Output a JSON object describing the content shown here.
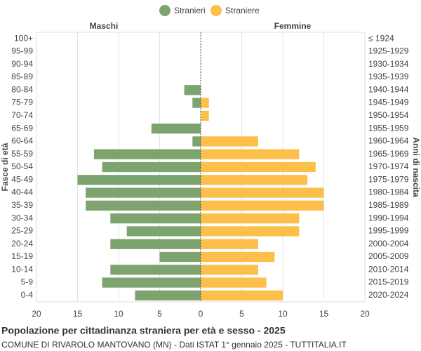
{
  "chart_data": {
    "type": "pyramid",
    "title": "Popolazione per cittadinanza straniera per età e sesso - 2025",
    "subtitle": "COMUNE DI RIVAROLO MANTOVANO (MN) - Dati ISTAT 1° gennaio 2025 - TUTTITALIA.IT",
    "left_label": "Maschi",
    "right_label": "Femmine",
    "y_label": "Fasce di età",
    "y2_label": "Anni di nascita",
    "categories": [
      "100+",
      "95-99",
      "90-94",
      "85-89",
      "80-84",
      "75-79",
      "70-74",
      "65-69",
      "60-64",
      "55-59",
      "50-54",
      "45-49",
      "40-44",
      "35-39",
      "30-34",
      "25-29",
      "20-24",
      "15-19",
      "10-14",
      "5-9",
      "0-4"
    ],
    "birth_years": [
      "≤ 1924",
      "1925-1929",
      "1930-1934",
      "1935-1939",
      "1940-1944",
      "1945-1949",
      "1950-1954",
      "1955-1959",
      "1960-1964",
      "1965-1969",
      "1970-1974",
      "1975-1979",
      "1980-1984",
      "1985-1989",
      "1990-1994",
      "1995-1999",
      "2000-2004",
      "2005-2009",
      "2010-2014",
      "2015-2019",
      "2020-2024"
    ],
    "series": [
      {
        "name": "Stranieri",
        "color": "#7da36e",
        "side": "left",
        "values": [
          0,
          0,
          0,
          0,
          2,
          1,
          0,
          6,
          1,
          13,
          12,
          15,
          14,
          14,
          11,
          9,
          11,
          5,
          11,
          12,
          8
        ]
      },
      {
        "name": "Straniere",
        "color": "#fcbf49",
        "side": "right",
        "values": [
          0,
          0,
          0,
          0,
          0,
          1,
          1,
          0,
          7,
          12,
          14,
          13,
          15,
          15,
          12,
          12,
          7,
          9,
          7,
          8,
          10
        ]
      }
    ],
    "xlim": [
      -20,
      20
    ],
    "xticks": [
      {
        "value": -20,
        "label": "20"
      },
      {
        "value": -15,
        "label": "15"
      },
      {
        "value": -10,
        "label": "10"
      },
      {
        "value": -5,
        "label": "5"
      },
      0,
      5,
      10,
      15,
      20
    ],
    "grid": true
  }
}
